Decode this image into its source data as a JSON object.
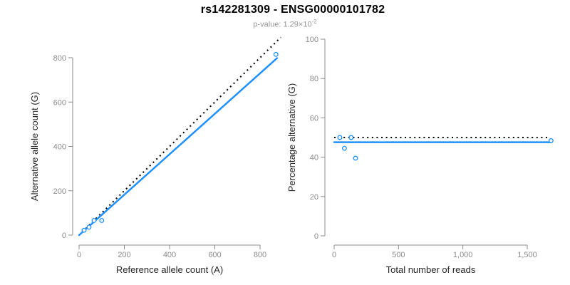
{
  "header": {
    "title": "rs142281309 - ENSG00000101782",
    "subtitle_prefix": "p-value: 1.29×10",
    "subtitle_exponent": "-2"
  },
  "colors": {
    "accent_blue": "#1E90FF",
    "reference_black": "#000000",
    "axis_gray": "#8c8c8c",
    "axis_title_dark": "#262626",
    "subtitle_gray": "#979797"
  },
  "chart_data": [
    {
      "type": "scatter",
      "name": "allele-counts-scatter",
      "xlabel": "Reference allele count (A)",
      "ylabel": "Alternative allele count (G)",
      "xlim": [
        0,
        800
      ],
      "ylim": [
        0,
        800
      ],
      "xticks": {
        "values": [
          0,
          200,
          400,
          600,
          800
        ],
        "labels": [
          "0",
          "200",
          "400",
          "600",
          "800"
        ]
      },
      "yticks": {
        "values": [
          0,
          200,
          400,
          600,
          800
        ],
        "labels": [
          "0",
          "200",
          "400",
          "600",
          "800"
        ]
      },
      "grid": false,
      "legend": null,
      "points": [
        [
          22,
          22
        ],
        [
          44,
          36
        ],
        [
          66,
          66
        ],
        [
          100,
          66
        ],
        [
          870,
          815
        ]
      ],
      "lines": [
        {
          "name": "identity-line",
          "x1": 0,
          "y1": 0,
          "x2": 892,
          "y2": 892,
          "style": "dotted",
          "color": "#000000"
        },
        {
          "name": "fit-line",
          "x1": 0,
          "y1": 0,
          "x2": 875,
          "y2": 798,
          "style": "solid",
          "color": "#1E90FF"
        }
      ]
    },
    {
      "type": "scatter",
      "name": "percentage-vs-reads-scatter",
      "xlabel": "Total number of reads",
      "ylabel": "Percentage alternative (G)",
      "xlim": [
        0,
        1500
      ],
      "ylim": [
        0,
        100
      ],
      "xticks": {
        "values": [
          0,
          500,
          1000,
          1500
        ],
        "labels": [
          "0",
          "500",
          "1,000",
          "1,500"
        ]
      },
      "yticks": {
        "values": [
          0,
          20,
          40,
          60,
          80,
          100
        ],
        "labels": [
          "0",
          "20",
          "40",
          "60",
          "80",
          "100"
        ]
      },
      "grid": false,
      "legend": null,
      "points": [
        [
          44,
          50
        ],
        [
          80,
          44.5
        ],
        [
          132,
          50
        ],
        [
          166,
          39.5
        ],
        [
          1685,
          48.4
        ]
      ],
      "lines": [
        {
          "name": "expected-50pct-line",
          "x1": 0,
          "y1": 50,
          "x2": 1660,
          "y2": 50,
          "style": "dotted",
          "color": "#000000"
        },
        {
          "name": "observed-pct-line",
          "x1": 0,
          "y1": 47.6,
          "x2": 1685,
          "y2": 47.6,
          "style": "solid",
          "color": "#1E90FF"
        }
      ]
    }
  ]
}
